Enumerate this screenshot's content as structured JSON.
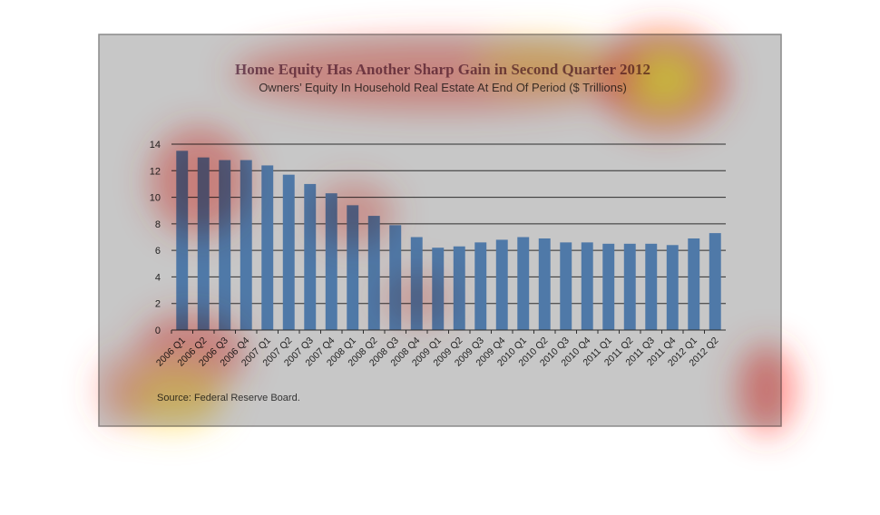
{
  "chart_data": {
    "type": "bar",
    "title": "Home Equity Has Another Sharp Gain in Second Quarter 2012",
    "subtitle": "Owners’ Equity In Household Real Estate At End Of Period ($ Trillions)",
    "source": "Source:  Federal Reserve Board.",
    "categories": [
      "2006 Q1",
      "2006 Q2",
      "2006 Q3",
      "2006 Q4",
      "2007 Q1",
      "2007 Q2",
      "2007 Q3",
      "2007 Q4",
      "2008 Q1",
      "2008 Q2",
      "2008 Q3",
      "2008 Q4",
      "2009 Q1",
      "2009 Q2",
      "2009 Q3",
      "2009 Q4",
      "2010 Q1",
      "2010 Q2",
      "2010 Q3",
      "2010 Q4",
      "2011 Q1",
      "2011 Q2",
      "2011 Q3",
      "2011 Q4",
      "2012 Q1",
      "2012 Q2"
    ],
    "values": [
      13.5,
      13.0,
      12.8,
      12.8,
      12.4,
      11.7,
      11.0,
      10.3,
      9.4,
      8.6,
      7.9,
      7.0,
      6.2,
      6.3,
      6.6,
      6.8,
      7.0,
      6.9,
      6.6,
      6.6,
      6.5,
      6.5,
      6.5,
      6.4,
      6.9,
      7.3
    ],
    "ylim": [
      0,
      14
    ],
    "yticks": [
      0,
      2,
      4,
      6,
      8,
      10,
      12,
      14
    ],
    "grid": true,
    "bar_color": "#4f79a8",
    "gridline_color": "#2e2e2e",
    "frame_background": "#c7c7c7",
    "heatmap_colors": [
      "#ff0000",
      "#ffff00"
    ]
  }
}
